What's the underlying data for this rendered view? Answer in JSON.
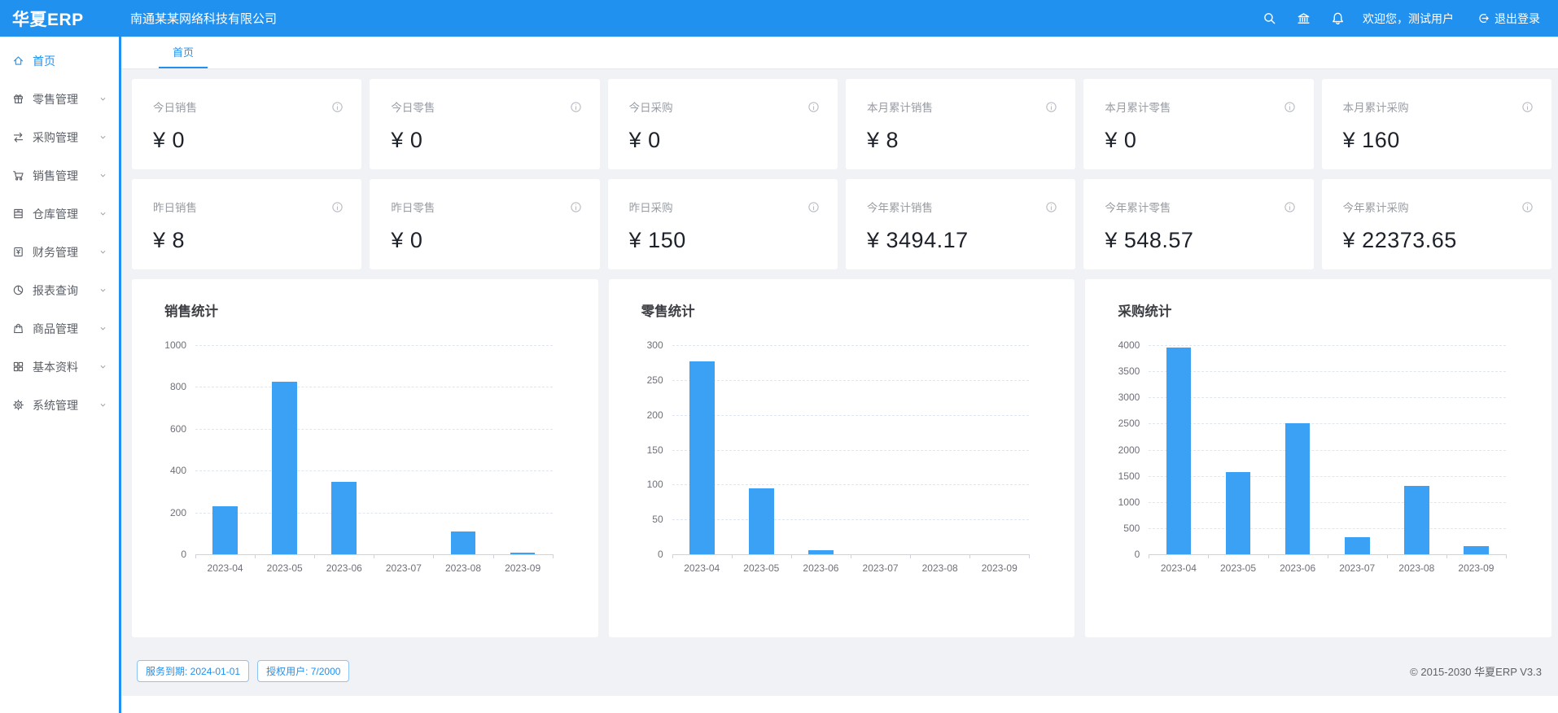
{
  "header": {
    "logo": "华夏ERP",
    "company": "南通某某网络科技有限公司",
    "welcome": "欢迎您，测试用户",
    "logout_label": "退出登录"
  },
  "tabs": [
    {
      "label": "首页",
      "active": true
    }
  ],
  "sidebar": {
    "items": [
      {
        "key": "home",
        "label": "首页",
        "icon": "home-icon",
        "active": true,
        "expandable": false
      },
      {
        "key": "retail",
        "label": "零售管理",
        "icon": "retail-gift-icon",
        "active": false,
        "expandable": true
      },
      {
        "key": "purchase",
        "label": "采购管理",
        "icon": "swap-arrows-icon",
        "active": false,
        "expandable": true
      },
      {
        "key": "sales",
        "label": "销售管理",
        "icon": "cart-icon",
        "active": false,
        "expandable": true
      },
      {
        "key": "warehouse",
        "label": "仓库管理",
        "icon": "warehouse-icon",
        "active": false,
        "expandable": true
      },
      {
        "key": "finance",
        "label": "财务管理",
        "icon": "finance-icon",
        "active": false,
        "expandable": true
      },
      {
        "key": "reports",
        "label": "报表查询",
        "icon": "pie-chart-icon",
        "active": false,
        "expandable": true
      },
      {
        "key": "goods",
        "label": "商品管理",
        "icon": "bag-icon",
        "active": false,
        "expandable": true
      },
      {
        "key": "basic-data",
        "label": "基本资料",
        "icon": "grid-icon",
        "active": false,
        "expandable": true
      },
      {
        "key": "system",
        "label": "系统管理",
        "icon": "gear-icon",
        "active": false,
        "expandable": true
      }
    ]
  },
  "stat_cards": [
    {
      "key": "today-sales",
      "label": "今日销售",
      "value": "¥ 0"
    },
    {
      "key": "today-retail",
      "label": "今日零售",
      "value": "¥ 0"
    },
    {
      "key": "today-purchase",
      "label": "今日采购",
      "value": "¥ 0"
    },
    {
      "key": "month-sales",
      "label": "本月累计销售",
      "value": "¥ 8"
    },
    {
      "key": "month-retail",
      "label": "本月累计零售",
      "value": "¥ 0"
    },
    {
      "key": "month-purchase",
      "label": "本月累计采购",
      "value": "¥ 160"
    },
    {
      "key": "yesterday-sales",
      "label": "昨日销售",
      "value": "¥ 8"
    },
    {
      "key": "yesterday-retail",
      "label": "昨日零售",
      "value": "¥ 0"
    },
    {
      "key": "yesterday-purchase",
      "label": "昨日采购",
      "value": "¥ 150"
    },
    {
      "key": "year-sales",
      "label": "今年累计销售",
      "value": "¥ 3494.17"
    },
    {
      "key": "year-retail",
      "label": "今年累计零售",
      "value": "¥ 548.57"
    },
    {
      "key": "year-purchase",
      "label": "今年累计采购",
      "value": "¥ 22373.65"
    }
  ],
  "chart_data": [
    {
      "key": "sales",
      "type": "bar",
      "title": "销售统计",
      "categories": [
        "2023-04",
        "2023-05",
        "2023-06",
        "2023-07",
        "2023-08",
        "2023-09"
      ],
      "values": [
        230,
        825,
        345,
        0,
        110,
        8
      ],
      "xlabel": "",
      "ylabel": "",
      "ylim": [
        0,
        1000
      ],
      "ytick_step": 200,
      "grid": "horizontal-dashed",
      "legend": "none"
    },
    {
      "key": "retail",
      "type": "bar",
      "title": "零售统计",
      "categories": [
        "2023-04",
        "2023-05",
        "2023-06",
        "2023-07",
        "2023-08",
        "2023-09"
      ],
      "values": [
        277,
        95,
        6,
        0,
        0,
        0
      ],
      "xlabel": "",
      "ylabel": "",
      "ylim": [
        0,
        300
      ],
      "ytick_step": 50,
      "grid": "horizontal-dashed",
      "legend": "none"
    },
    {
      "key": "purchase",
      "type": "bar",
      "title": "采购统计",
      "categories": [
        "2023-04",
        "2023-05",
        "2023-06",
        "2023-07",
        "2023-08",
        "2023-09"
      ],
      "values": [
        3950,
        1580,
        2500,
        330,
        1300,
        160
      ],
      "xlabel": "",
      "ylabel": "",
      "ylim": [
        0,
        4000
      ],
      "ytick_step": 500,
      "grid": "horizontal-dashed",
      "legend": "none"
    }
  ],
  "footer": {
    "badges": [
      {
        "key": "service-expiry",
        "label": "服务到期: 2024-01-01"
      },
      {
        "key": "licensed-users",
        "label": "授权用户: 7/2000"
      }
    ],
    "copyright": "© 2015-2030 华夏ERP V3.3"
  },
  "colors": {
    "primary": "#2191f0",
    "bar": "#3ba1f5",
    "content_bg": "#f0f2f5",
    "badge_border": "#8fc3f3",
    "card_value_text": "#1d2129",
    "muted_label": "#989ca3"
  }
}
